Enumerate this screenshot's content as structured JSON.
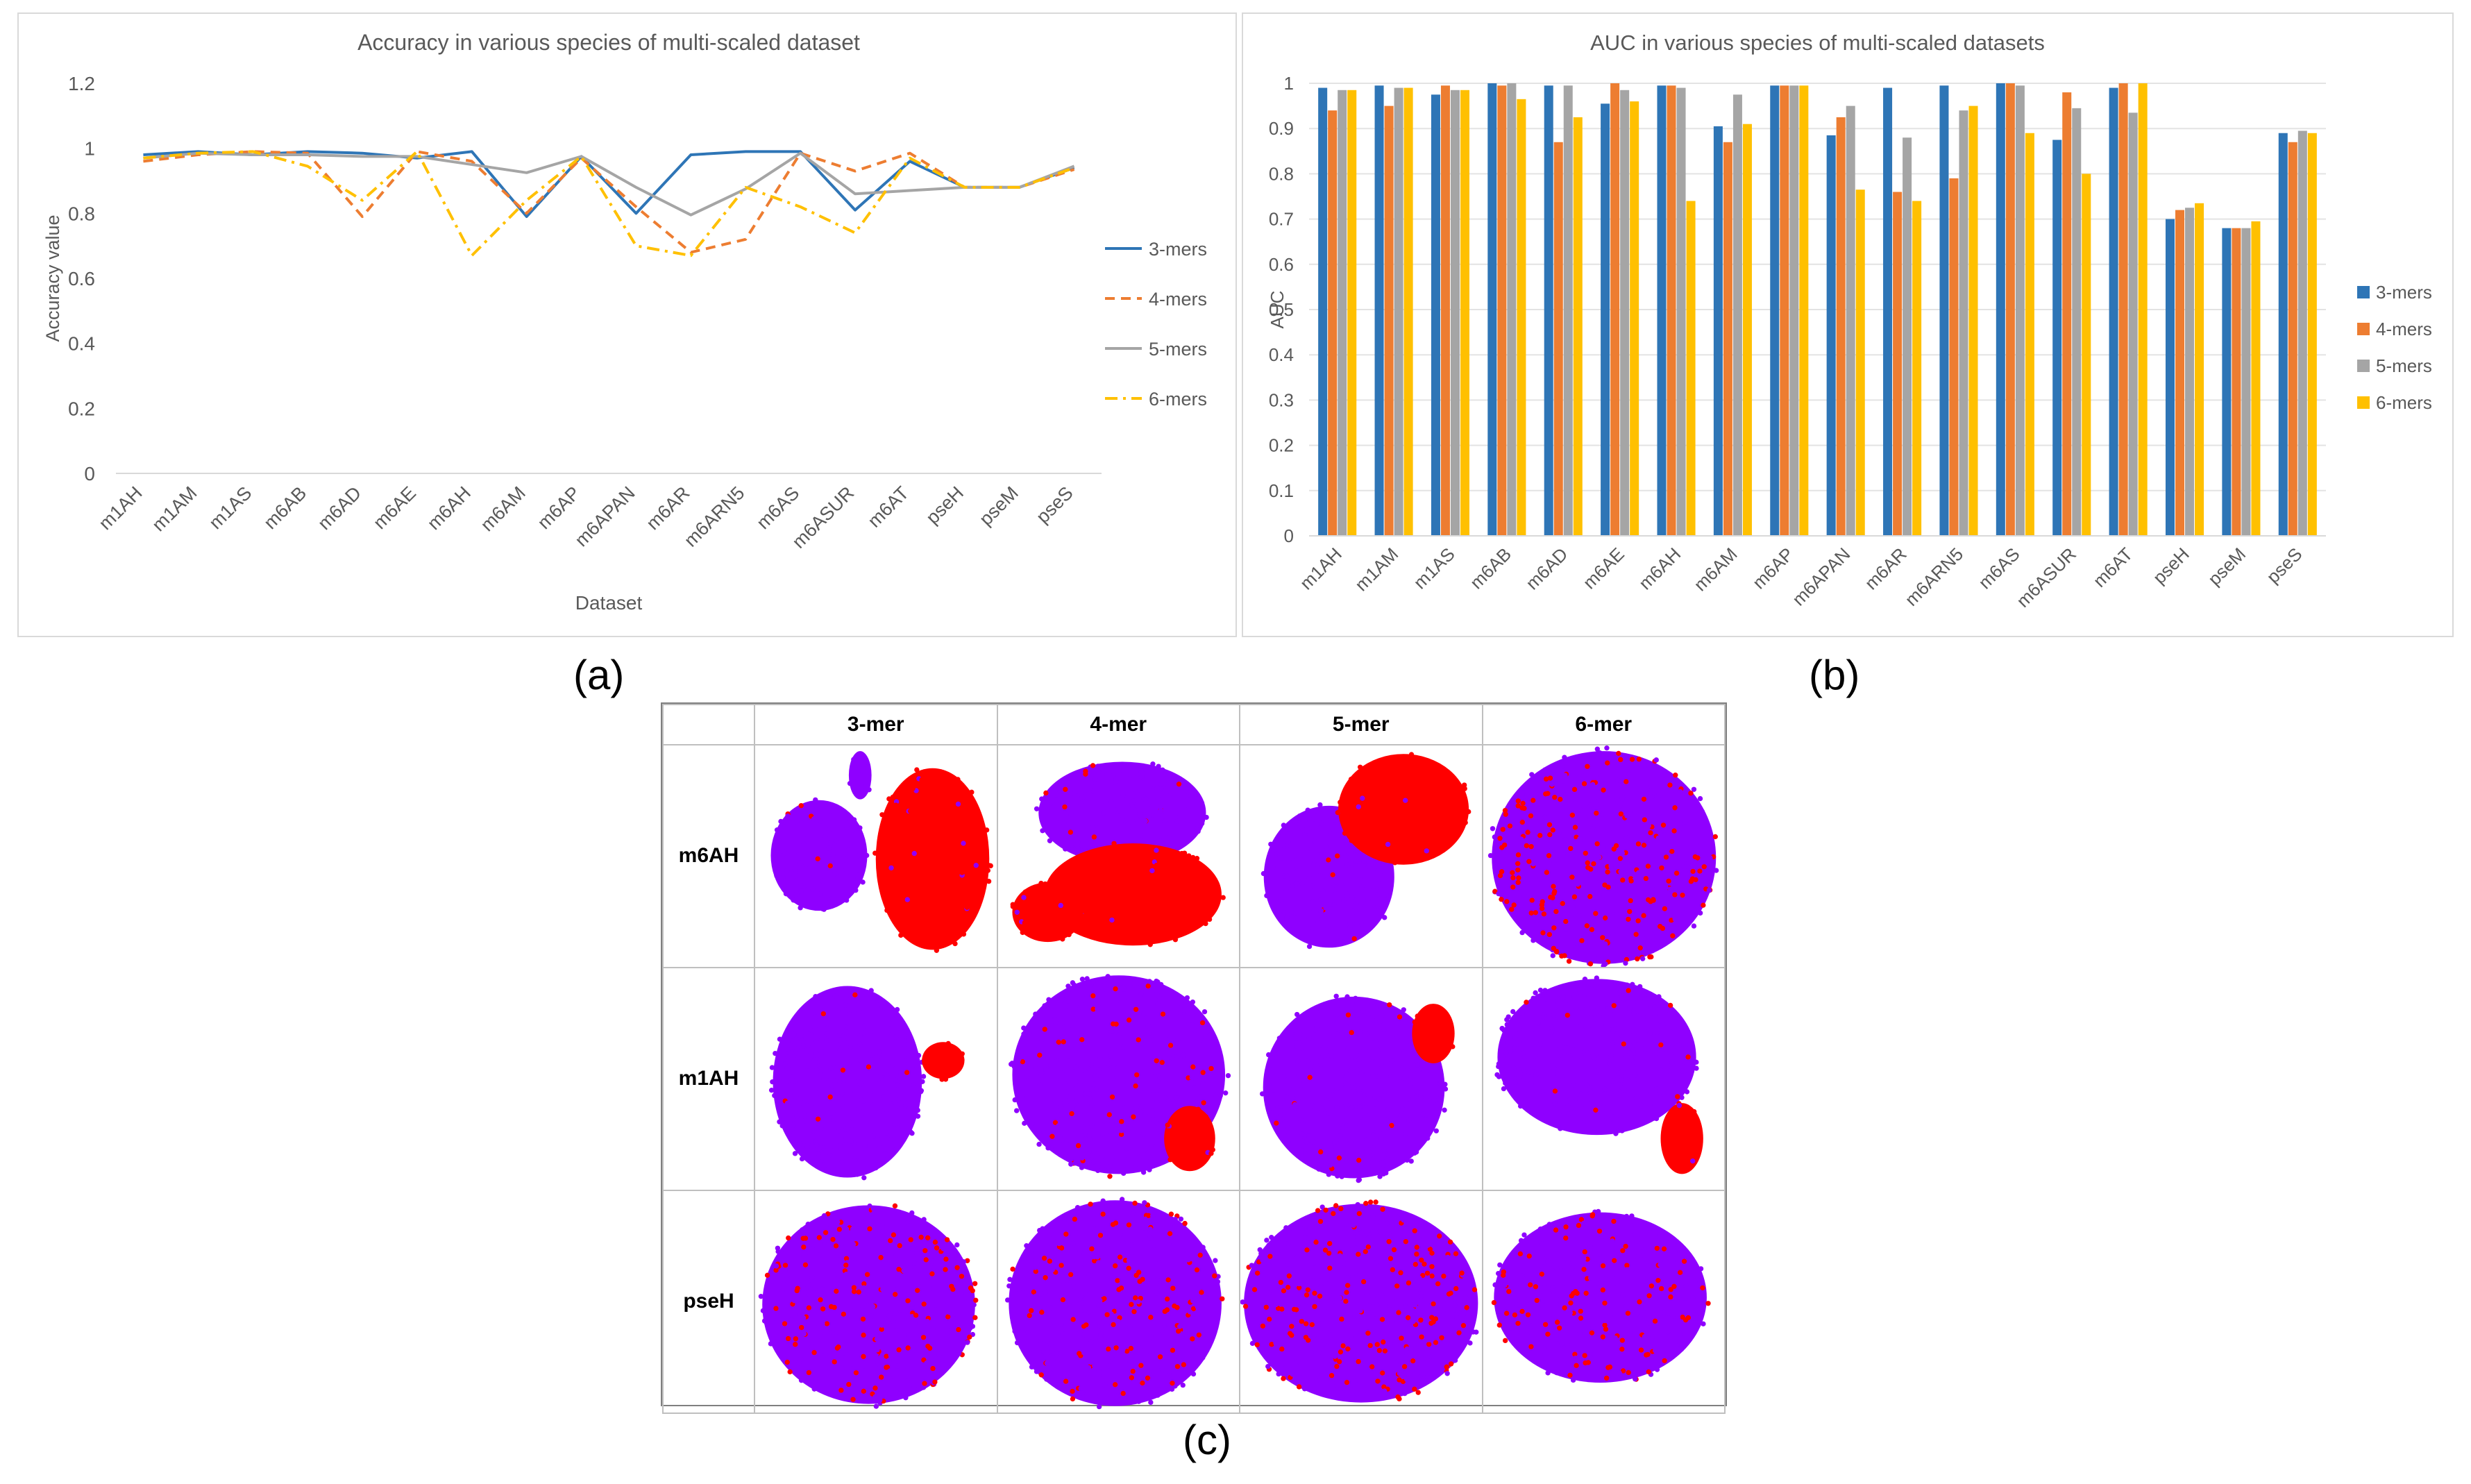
{
  "chart_data": [
    {
      "id": "a",
      "type": "line",
      "title": "Accuracy in various species of multi-scaled dataset",
      "xlabel": "Dataset",
      "ylabel": "Accuracy value",
      "ylim": [
        0,
        1.2
      ],
      "yticks": [
        "0",
        "0.2",
        "0.4",
        "0.6",
        "0.8",
        "1",
        "1.2"
      ],
      "grid": true,
      "legend_position": "right",
      "categories": [
        "m1AH",
        "m1AM",
        "m1AS",
        "m6AB",
        "m6AD",
        "m6AE",
        "m6AH",
        "m6AM",
        "m6AP",
        "m6APAN",
        "m6AR",
        "m6ARN5",
        "m6AS",
        "m6ASUR",
        "m6AT",
        "pseH",
        "pseM",
        "pseS"
      ],
      "series": [
        {
          "name": "3-mers",
          "color": "#2E75B6",
          "dash": "solid",
          "values": [
            0.98,
            0.99,
            0.98,
            0.99,
            0.985,
            0.97,
            0.99,
            0.79,
            0.975,
            0.8,
            0.98,
            0.99,
            0.99,
            0.81,
            0.96,
            0.88,
            0.88,
            0.94
          ]
        },
        {
          "name": "4-mers",
          "color": "#ED7D31",
          "dash": "dashed",
          "values": [
            0.96,
            0.98,
            0.99,
            0.985,
            0.79,
            0.99,
            0.96,
            0.8,
            0.97,
            0.82,
            0.68,
            0.72,
            0.985,
            0.93,
            0.985,
            0.88,
            0.88,
            0.935
          ]
        },
        {
          "name": "5-mers",
          "color": "#A5A5A5",
          "dash": "solid",
          "values": [
            0.97,
            0.985,
            0.98,
            0.98,
            0.975,
            0.975,
            0.95,
            0.925,
            0.975,
            0.88,
            0.795,
            0.875,
            0.985,
            0.86,
            0.87,
            0.88,
            0.88,
            0.945
          ]
        },
        {
          "name": "6-mers",
          "color": "#FFC000",
          "dash": "dashdot",
          "values": [
            0.97,
            0.985,
            0.99,
            0.945,
            0.84,
            0.99,
            0.67,
            0.84,
            0.975,
            0.7,
            0.67,
            0.88,
            0.82,
            0.74,
            0.97,
            0.88,
            0.88,
            0.94
          ]
        }
      ]
    },
    {
      "id": "b",
      "type": "bar",
      "title": "AUC in various species of multi-scaled datasets",
      "xlabel": "",
      "ylabel": "AUC",
      "ylim": [
        0,
        1
      ],
      "yticks": [
        "0",
        "0.1",
        "0.2",
        "0.3",
        "0.4",
        "0.5",
        "0.6",
        "0.7",
        "0.8",
        "0.9",
        "1"
      ],
      "grid": true,
      "legend_position": "right",
      "categories": [
        "m1AH",
        "m1AM",
        "m1AS",
        "m6AB",
        "m6AD",
        "m6AE",
        "m6AH",
        "m6AM",
        "m6AP",
        "m6APAN",
        "m6AR",
        "m6ARN5",
        "m6AS",
        "m6ASUR",
        "m6AT",
        "pseH",
        "pseM",
        "pseS"
      ],
      "series": [
        {
          "name": "3-mers",
          "color": "#2E75B6",
          "values": [
            0.99,
            0.995,
            0.975,
            1.0,
            0.995,
            0.955,
            0.995,
            0.905,
            0.995,
            0.885,
            0.99,
            0.995,
            1.0,
            0.875,
            0.99,
            0.7,
            0.68,
            0.89
          ]
        },
        {
          "name": "4-mers",
          "color": "#ED7D31",
          "values": [
            0.94,
            0.95,
            0.995,
            0.995,
            0.87,
            1.0,
            0.995,
            0.87,
            0.995,
            0.925,
            0.76,
            0.79,
            1.0,
            0.98,
            1.0,
            0.72,
            0.68,
            0.87
          ]
        },
        {
          "name": "5-mers",
          "color": "#A5A5A5",
          "values": [
            0.985,
            0.99,
            0.985,
            1.0,
            0.995,
            0.985,
            0.99,
            0.975,
            0.995,
            0.95,
            0.88,
            0.94,
            0.995,
            0.945,
            0.935,
            0.725,
            0.68,
            0.895
          ]
        },
        {
          "name": "6-mers",
          "color": "#FFC000",
          "values": [
            0.985,
            0.99,
            0.985,
            0.965,
            0.925,
            0.96,
            0.74,
            0.91,
            0.995,
            0.765,
            0.74,
            0.95,
            0.89,
            0.8,
            1.0,
            0.735,
            0.695,
            0.89
          ]
        }
      ]
    }
  ],
  "subfigure_labels": {
    "a": "(a)",
    "b": "(b)",
    "c": "(c)"
  },
  "tsne_grid": {
    "columns": [
      "3-mer",
      "4-mer",
      "5-mer",
      "6-mer"
    ],
    "rows": [
      "m6AH",
      "m1AH",
      "pseH"
    ],
    "colors": {
      "class_a": "#8F00FF",
      "class_b": "#FF0000"
    }
  }
}
